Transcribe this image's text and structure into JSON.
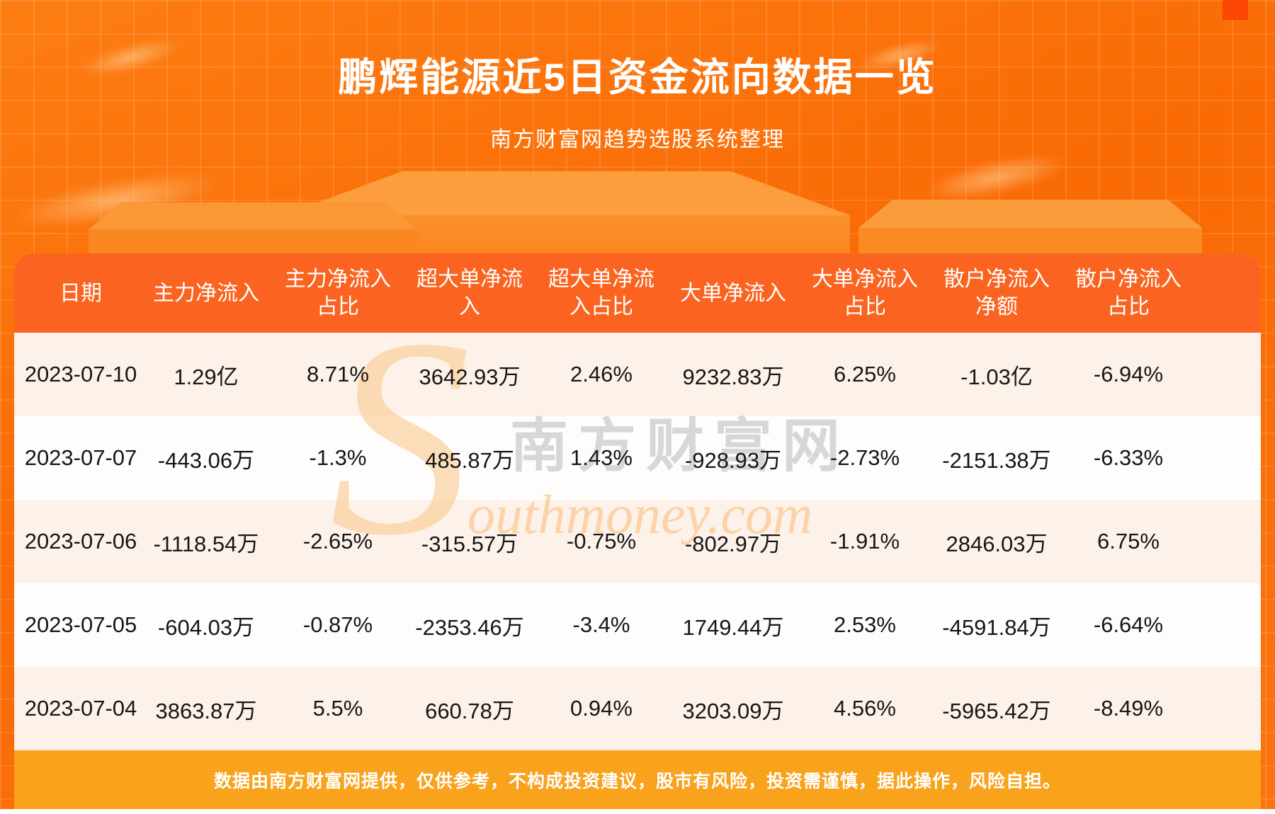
{
  "page": {
    "title": "鹏辉能源近5日资金流向数据一览",
    "subtitle": "南方财富网趋势选股系统整理",
    "disclaimer": "数据由南方财富网提供，仅供参考，不构成投资建议，股市有风险，投资需谨慎，据此操作，风险自担。"
  },
  "watermark": {
    "initial": "S",
    "cn": "南方财富网",
    "en": "outhmoney.com"
  },
  "table": {
    "headers": [
      "日期",
      "主力净流入",
      "主力净流入\n占比",
      "超大单净流\n入",
      "超大单净流\n入占比",
      "大单净流入",
      "大单净流入\n占比",
      "散户净流入\n净额",
      "散户净流入\n占比"
    ]
  },
  "chart_data": {
    "type": "table",
    "title": "鹏辉能源近5日资金流向数据一览",
    "subtitle": "南方财富网趋势选股系统整理",
    "columns": [
      "日期",
      "主力净流入",
      "主力净流入占比",
      "超大单净流入",
      "超大单净流入占比",
      "大单净流入",
      "大单净流入占比",
      "散户净流入净额",
      "散户净流入占比"
    ],
    "rows": [
      [
        "2023-07-10",
        "1.29亿",
        "8.71%",
        "3642.93万",
        "2.46%",
        "9232.83万",
        "6.25%",
        "-1.03亿",
        "-6.94%"
      ],
      [
        "2023-07-07",
        "-443.06万",
        "-1.3%",
        "485.87万",
        "1.43%",
        "-928.93万",
        "-2.73%",
        "-2151.38万",
        "-6.33%"
      ],
      [
        "2023-07-06",
        "-1118.54万",
        "-2.65%",
        "-315.57万",
        "-0.75%",
        "-802.97万",
        "-1.91%",
        "2846.03万",
        "6.75%"
      ],
      [
        "2023-07-05",
        "-604.03万",
        "-0.87%",
        "-2353.46万",
        "-3.4%",
        "1749.44万",
        "2.53%",
        "-4591.84万",
        "-6.64%"
      ],
      [
        "2023-07-04",
        "3863.87万",
        "5.5%",
        "660.78万",
        "0.94%",
        "3203.09万",
        "4.56%",
        "-5965.42万",
        "-8.49%"
      ]
    ]
  },
  "colors": {
    "banner_orange": "#fb6b06",
    "header_band": "#fa6420",
    "footer_band": "#f9a21b",
    "row_cream": "#fdf2e9",
    "row_white": "#fffdfb",
    "cell_text": "#161616",
    "title_text": "#ffffff"
  }
}
